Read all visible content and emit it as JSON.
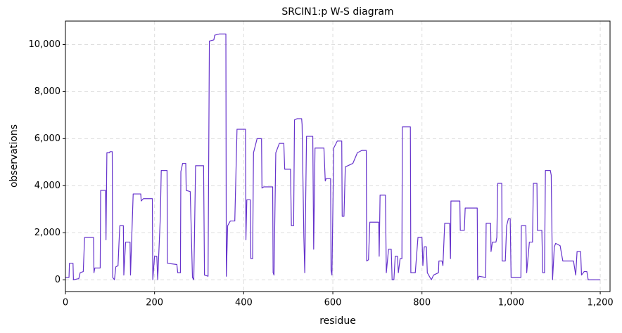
{
  "chart_data": {
    "type": "line",
    "title": "SRCIN1:p W-S diagram",
    "x_label": "residue",
    "y_label": "observations",
    "color": "#6633cc",
    "grid": true,
    "xlim": [
      0,
      1222
    ],
    "ylim": [
      -500,
      11000
    ],
    "xticks": [
      0,
      200,
      400,
      600,
      800,
      {
        "value": 1000,
        "label": "1,000"
      },
      {
        "value": 1200,
        "label": "1,200"
      }
    ],
    "yticks": [
      0,
      {
        "value": 2000,
        "label": "2,000"
      },
      {
        "value": 4000,
        "label": "4,000"
      },
      {
        "value": 6000,
        "label": "6,000"
      },
      {
        "value": 8000,
        "label": "8,000"
      },
      {
        "value": 10000,
        "label": "10,000"
      }
    ],
    "x": [
      0,
      8,
      9,
      17,
      18,
      30,
      33,
      40,
      43,
      63,
      64,
      66,
      78,
      79,
      90,
      91,
      93,
      99,
      100,
      105,
      106,
      110,
      113,
      118,
      120,
      122,
      130,
      131,
      135,
      145,
      146,
      152,
      169,
      170,
      175,
      195,
      196,
      200,
      205,
      207,
      213,
      215,
      228,
      229,
      250,
      252,
      258,
      259,
      263,
      270,
      271,
      280,
      282,
      285,
      288,
      292,
      310,
      312,
      320,
      323,
      333,
      335,
      345,
      360,
      361,
      364,
      370,
      380,
      385,
      404,
      405,
      407,
      415,
      416,
      420,
      422,
      430,
      440,
      441,
      445,
      465,
      466,
      468,
      472,
      480,
      490,
      492,
      505,
      507,
      512,
      514,
      520,
      530,
      531,
      535,
      537,
      541,
      555,
      557,
      560,
      580,
      583,
      585,
      595,
      596,
      598,
      602,
      610,
      620,
      621,
      625,
      628,
      645,
      655,
      665,
      675,
      676,
      680,
      683,
      703,
      704,
      706,
      718,
      720,
      725,
      731,
      733,
      737,
      740,
      745,
      747,
      751,
      755,
      756,
      774,
      775,
      785,
      791,
      800,
      802,
      805,
      810,
      812,
      821,
      826,
      837,
      838,
      845,
      847,
      851,
      862,
      864,
      865,
      885,
      886,
      895,
      897,
      924,
      925,
      928,
      943,
      944,
      954,
      955,
      958,
      966,
      968,
      970,
      979,
      980,
      987,
      990,
      994,
      998,
      1000,
      1022,
      1023,
      1033,
      1035,
      1041,
      1048,
      1050,
      1058,
      1059,
      1069,
      1071,
      1075,
      1077,
      1088,
      1090,
      1093,
      1097,
      1100,
      1110,
      1116,
      1140,
      1145,
      1148,
      1156,
      1158,
      1164,
      1170,
      1173,
      1200
    ],
    "values": [
      100,
      100,
      700,
      700,
      0,
      50,
      300,
      350,
      1800,
      1800,
      300,
      500,
      500,
      3800,
      3800,
      1700,
      5400,
      5400,
      5450,
      5450,
      100,
      0,
      550,
      600,
      1500,
      2300,
      2300,
      200,
      1600,
      1600,
      200,
      3650,
      3650,
      3350,
      3450,
      3450,
      0,
      1000,
      1000,
      0,
      2700,
      4650,
      4650,
      700,
      650,
      300,
      300,
      4600,
      4950,
      4950,
      3800,
      3750,
      2350,
      100,
      0,
      4850,
      4850,
      200,
      150,
      10150,
      10200,
      10400,
      10450,
      10450,
      150,
      2300,
      2500,
      2500,
      6400,
      6400,
      1700,
      3400,
      3400,
      900,
      900,
      5400,
      6000,
      6000,
      3900,
      3950,
      3950,
      300,
      200,
      5400,
      5800,
      5800,
      4700,
      4700,
      2300,
      2300,
      6800,
      6850,
      6850,
      6600,
      1800,
      300,
      6100,
      6100,
      1300,
      5600,
      5600,
      4200,
      4300,
      4300,
      400,
      200,
      5600,
      5900,
      5900,
      2700,
      2700,
      4800,
      4950,
      5400,
      5500,
      5500,
      800,
      850,
      2450,
      2450,
      1000,
      3600,
      3600,
      300,
      1300,
      1300,
      0,
      0,
      1000,
      1000,
      300,
      900,
      900,
      6500,
      6500,
      300,
      300,
      1800,
      1800,
      600,
      1400,
      1400,
      300,
      0,
      200,
      300,
      800,
      800,
      600,
      2400,
      2400,
      900,
      3350,
      3350,
      2100,
      2100,
      3050,
      3050,
      0,
      150,
      100,
      2400,
      2400,
      1200,
      1600,
      1600,
      1800,
      4100,
      4100,
      800,
      800,
      2300,
      2600,
      2600,
      100,
      100,
      2300,
      2300,
      300,
      1600,
      1600,
      4100,
      4100,
      2100,
      2100,
      300,
      300,
      4650,
      4650,
      4450,
      0,
      1400,
      1550,
      1450,
      800,
      800,
      200,
      1200,
      1200,
      200,
      350,
      350,
      0,
      0
    ]
  }
}
